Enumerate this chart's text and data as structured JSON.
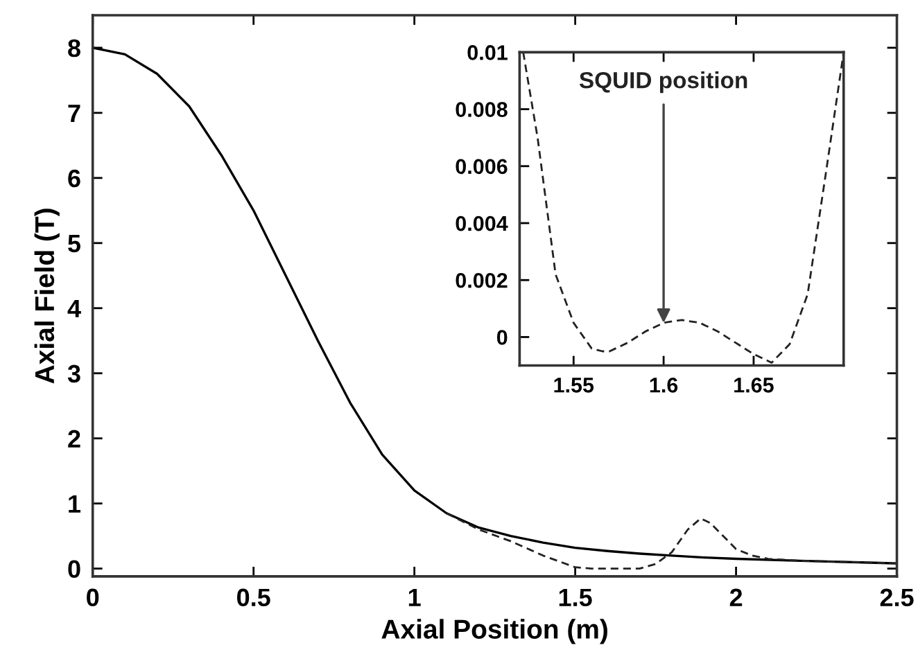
{
  "chart_data": [
    {
      "type": "line",
      "xlabel": "Axial Position (m)",
      "ylabel": "Axial Field (T)",
      "xlim": [
        0,
        2.5
      ],
      "ylim": [
        -0.12,
        8.5
      ],
      "xticks": [
        0,
        0.5,
        1,
        1.5,
        2,
        2.5
      ],
      "yticks": [
        0,
        1,
        2,
        3,
        4,
        5,
        6,
        7,
        8
      ],
      "series": [
        {
          "color": "#000000",
          "line_style": "solid",
          "x": [
            0,
            0.1,
            0.2,
            0.3,
            0.4,
            0.5,
            0.6,
            0.7,
            0.8,
            0.9,
            1.0,
            1.1,
            1.2,
            1.3,
            1.4,
            1.5,
            1.6,
            1.7,
            1.8,
            1.9,
            2.0,
            2.2,
            2.5
          ],
          "values": [
            8,
            7.9,
            7.6,
            7.1,
            6.35,
            5.5,
            4.5,
            3.5,
            2.55,
            1.75,
            1.2,
            0.85,
            0.63,
            0.5,
            0.4,
            0.32,
            0.27,
            0.23,
            0.2,
            0.17,
            0.15,
            0.12,
            0.08
          ]
        },
        {
          "color": "#222222",
          "line_style": "dashed",
          "x": [
            1.1,
            1.2,
            1.3,
            1.4,
            1.5,
            1.55,
            1.6,
            1.7,
            1.75,
            1.8,
            1.85,
            1.89,
            1.92,
            1.95,
            2.0,
            2.05,
            2.1,
            2.2,
            2.5
          ],
          "values": [
            0.85,
            0.6,
            0.42,
            0.2,
            0.02,
            0.0,
            0.0,
            0.0,
            0.07,
            0.25,
            0.6,
            0.77,
            0.7,
            0.55,
            0.3,
            0.2,
            0.15,
            0.12,
            0.08
          ]
        }
      ]
    },
    {
      "type": "line",
      "xlim": [
        1.52,
        1.7
      ],
      "ylim": [
        -0.001,
        0.01
      ],
      "xticks": [
        1.55,
        1.6,
        1.65
      ],
      "yticks": [
        0,
        0.002,
        0.004,
        0.006,
        0.008,
        0.01
      ],
      "annotations": [
        {
          "text": "SQUID position",
          "x": 1.6,
          "y": 0.0005
        }
      ],
      "series": [
        {
          "color": "#222222",
          "line_style": "dashed",
          "x": [
            1.522,
            1.53,
            1.54,
            1.55,
            1.56,
            1.566,
            1.57,
            1.58,
            1.59,
            1.6,
            1.61,
            1.62,
            1.63,
            1.64,
            1.65,
            1.66,
            1.67,
            1.68,
            1.69,
            1.7
          ],
          "values": [
            0.01,
            0.007,
            0.0022,
            0.0005,
            -0.0004,
            -0.0005,
            -0.0005,
            -0.0002,
            0.0002,
            0.0005,
            0.0006,
            0.0005,
            0.0002,
            -0.0002,
            -0.0006,
            -0.0009,
            -0.00025,
            0.0015,
            0.0057,
            0.01
          ]
        }
      ]
    }
  ]
}
